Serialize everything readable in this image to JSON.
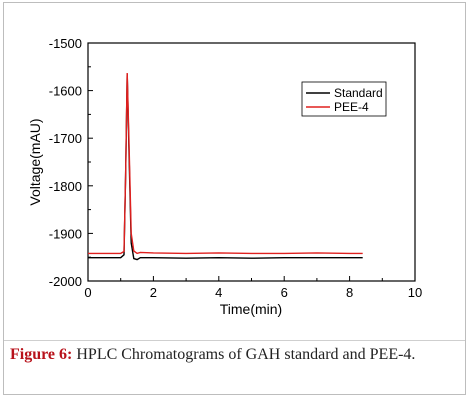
{
  "chart_data": {
    "type": "line",
    "xlabel": "Time(min)",
    "ylabel": "Voltage(mAU)",
    "xlim": [
      0,
      10
    ],
    "ylim": [
      -2000,
      -1500
    ],
    "x_ticks": [
      0,
      2,
      4,
      6,
      8,
      10
    ],
    "y_ticks": [
      -2000,
      -1900,
      -1800,
      -1700,
      -1600,
      -1500
    ],
    "grid": false,
    "legend_position": "top-right",
    "series": [
      {
        "name": "Standard",
        "color": "#000000",
        "x": [
          0,
          1.0,
          1.1,
          1.15,
          1.2,
          1.25,
          1.32,
          1.4,
          1.5,
          1.6,
          2,
          3,
          4,
          5,
          6,
          7,
          8,
          8.4
        ],
        "y": [
          -1951,
          -1951,
          -1945,
          -1780,
          -1565,
          -1720,
          -1920,
          -1953,
          -1955,
          -1951,
          -1951,
          -1952,
          -1951,
          -1952,
          -1951,
          -1951,
          -1951,
          -1951
        ]
      },
      {
        "name": "PEE-4",
        "color": "#e0201f",
        "x": [
          0,
          1.0,
          1.1,
          1.15,
          1.2,
          1.25,
          1.32,
          1.4,
          1.5,
          1.6,
          2,
          3,
          4,
          5,
          6,
          7,
          8,
          8.4
        ],
        "y": [
          -1942,
          -1942,
          -1938,
          -1780,
          -1563,
          -1700,
          -1900,
          -1937,
          -1942,
          -1940,
          -1941,
          -1942,
          -1941,
          -1942,
          -1942,
          -1941,
          -1942,
          -1942
        ]
      }
    ]
  },
  "caption": {
    "lead": "Figure 6:",
    "text": " HPLC Chromatograms of GAH standard and PEE-4."
  }
}
